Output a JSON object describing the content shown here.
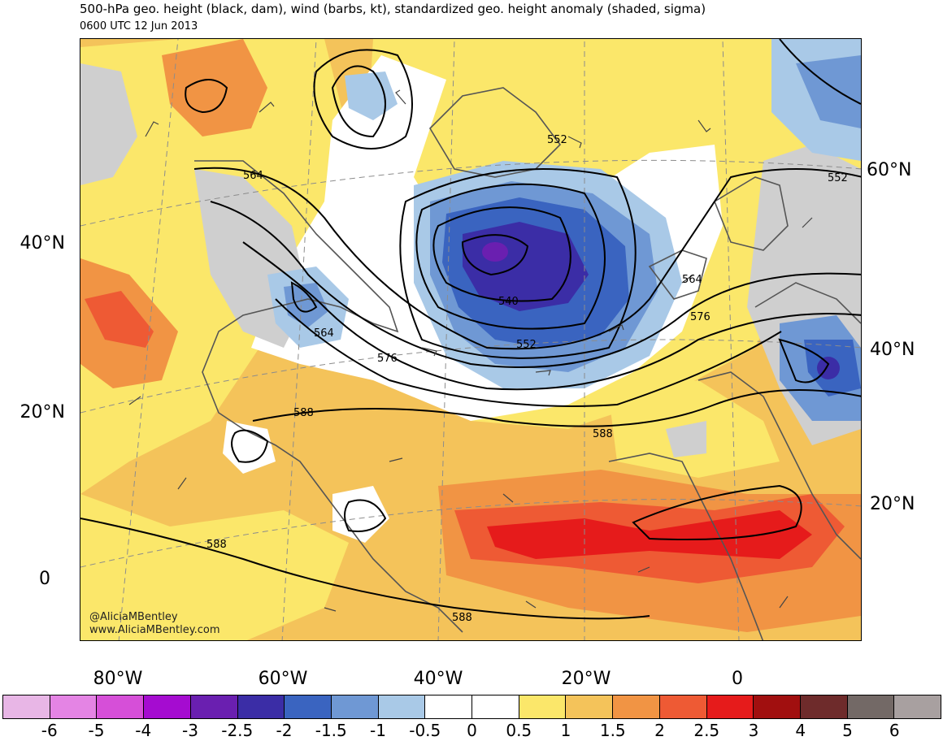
{
  "header": {
    "title": "500-hPa geo. height (black, dam), wind (barbs, kt), standardized geo. height anomaly (shaded, sigma)",
    "valid_time": "0600 UTC 12 Jun 2013"
  },
  "axes": {
    "lat_left": [
      "40°N",
      "20°N",
      "0"
    ],
    "lat_right": [
      "60°N",
      "40°N",
      "20°N"
    ],
    "lon_bottom": [
      "80°W",
      "60°W",
      "40°W",
      "20°W",
      "0"
    ]
  },
  "contour_labels": [
    "564",
    "564",
    "552",
    "540",
    "552",
    "576",
    "552",
    "564",
    "576",
    "588",
    "588",
    "588",
    "588"
  ],
  "credit": [
    "@AliciaMBentley",
    "www.AliciaMBentley.com"
  ],
  "colorbar": {
    "labels": [
      "-6",
      "-5",
      "-4",
      "-3",
      "-2.5",
      "-2",
      "-1.5",
      "-1",
      "-0.5",
      "0",
      "0.5",
      "1",
      "1.5",
      "2",
      "2.5",
      "3",
      "4",
      "5",
      "6"
    ],
    "colors": [
      "#e8b6e6",
      "#e484e4",
      "#d64fd8",
      "#a50cd0",
      "#6a1fb0",
      "#3b2da6",
      "#3a64c0",
      "#6f98d4",
      "#a9c9e7",
      "#ffffff",
      "#ffffff",
      "#fbe76a",
      "#f4c35a",
      "#f19444",
      "#ee5a34",
      "#e61b1b",
      "#a10f0f",
      "#6e2b2b",
      "#736966",
      "#a8a0a0"
    ]
  },
  "map_colors": {
    "ocean_base": "#f4c35a",
    "coast": "#555555",
    "contour": "#000000"
  }
}
